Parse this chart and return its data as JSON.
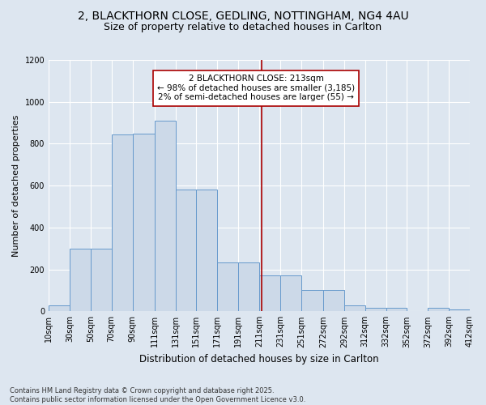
{
  "title_line1": "2, BLACKTHORN CLOSE, GEDLING, NOTTINGHAM, NG4 4AU",
  "title_line2": "Size of property relative to detached houses in Carlton",
  "xlabel": "Distribution of detached houses by size in Carlton",
  "ylabel": "Number of detached properties",
  "bar_edges": [
    10,
    30,
    50,
    70,
    90,
    111,
    131,
    151,
    171,
    191,
    211,
    231,
    251,
    272,
    292,
    312,
    332,
    352,
    372,
    392,
    412
  ],
  "bar_heights": [
    30,
    300,
    300,
    845,
    850,
    910,
    580,
    580,
    235,
    235,
    170,
    170,
    100,
    100,
    30,
    15,
    15,
    0,
    15,
    10,
    10
  ],
  "bin_labels": [
    "10sqm",
    "30sqm",
    "50sqm",
    "70sqm",
    "90sqm",
    "111sqm",
    "131sqm",
    "151sqm",
    "171sqm",
    "191sqm",
    "211sqm",
    "231sqm",
    "251sqm",
    "272sqm",
    "292sqm",
    "312sqm",
    "332sqm",
    "352sqm",
    "372sqm",
    "392sqm",
    "412sqm"
  ],
  "bar_color": "#ccd9e8",
  "bar_edge_color": "#6699cc",
  "vline_x": 213,
  "vline_color": "#aa0000",
  "annotation_line1": "2 BLACKTHORN CLOSE: 213sqm",
  "annotation_line2": "← 98% of detached houses are smaller (3,185)",
  "annotation_line3": "2% of semi-detached houses are larger (55) →",
  "annotation_box_color": "#aa0000",
  "ylim": [
    0,
    1200
  ],
  "yticks": [
    0,
    200,
    400,
    600,
    800,
    1000,
    1200
  ],
  "background_color": "#dde6f0",
  "plot_bg_color": "#dde6f0",
  "footer_text": "Contains HM Land Registry data © Crown copyright and database right 2025.\nContains public sector information licensed under the Open Government Licence v3.0.",
  "title_fontsize": 10,
  "subtitle_fontsize": 9,
  "axis_label_fontsize": 8.5,
  "tick_fontsize": 7,
  "annotation_fontsize": 7.5,
  "ylabel_fontsize": 8,
  "footer_fontsize": 6
}
